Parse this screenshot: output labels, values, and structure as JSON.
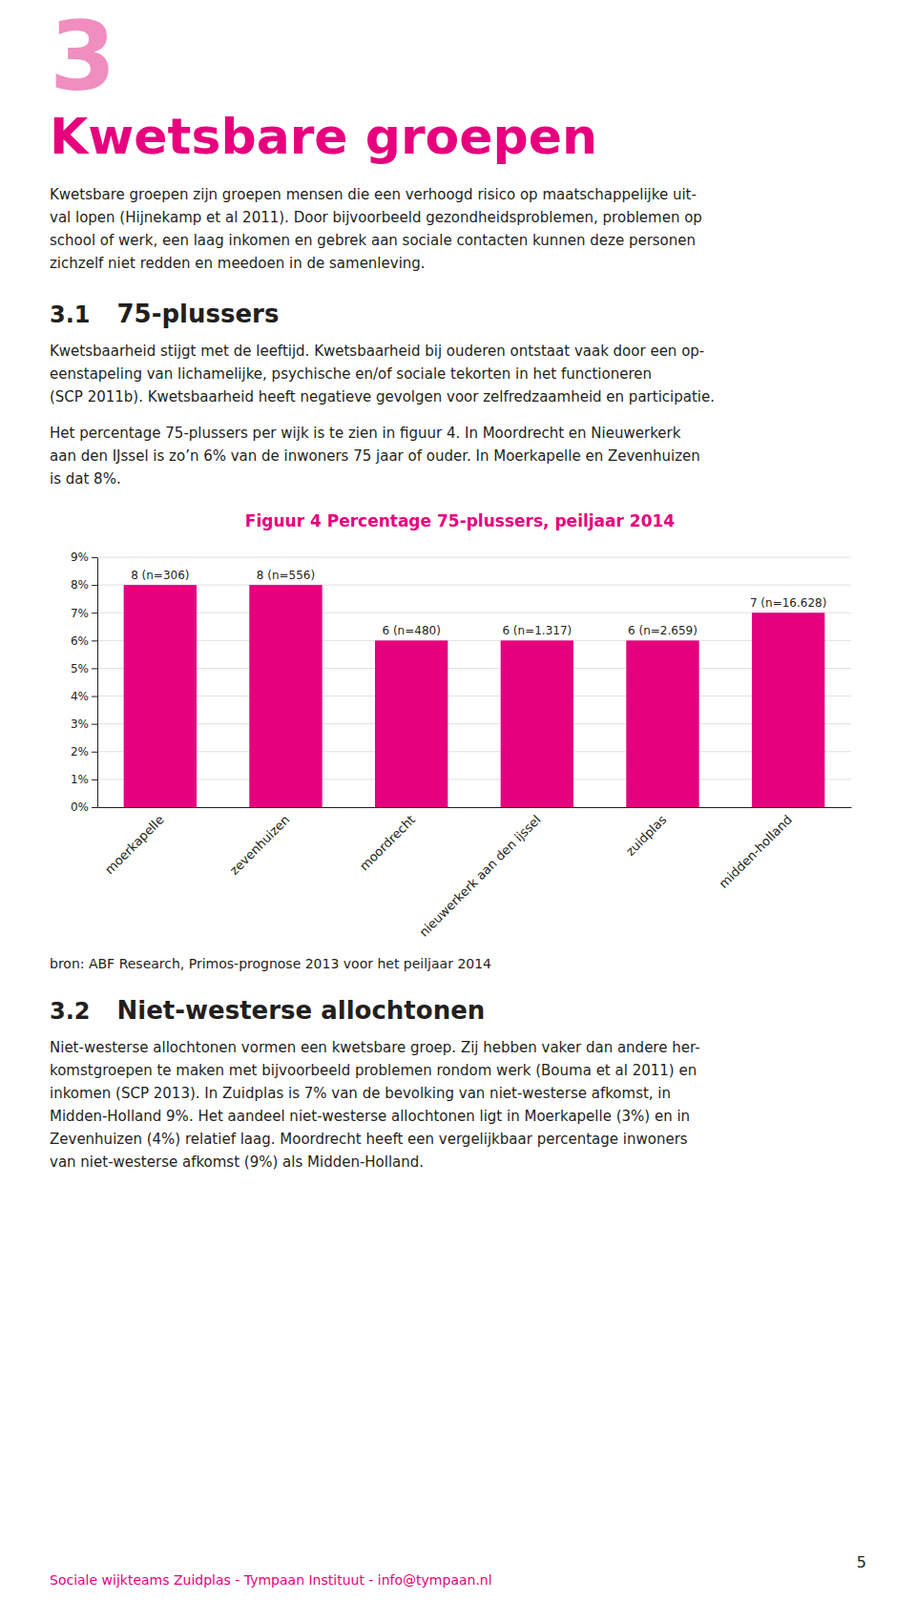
{
  "page_title_number": "3",
  "page_title": "Kwetsbare groepen",
  "intro_text": "Kwetsbare groepen zijn groepen mensen die een verhoogd risico op maatschappelijke uit-\nval lopen (Hijnekamp et al 2011). Door bijvoorbeeld gezondheidsproblemen, problemen op\nschool of werk, een laag inkomen en gebrek aan sociale contacten kunnen deze personen\nzichzelf niet redden en meedoen in de samenleving.",
  "section_31_num": "3.1",
  "section_31_label": "75-plussers",
  "section_31_para1": "Kwetsbaarheid stijgt met de leeftijd. Kwetsbaarheid bij ouderen ontstaat vaak door een op-\neenstapeling van lichamelijke, psychische en/of sociale tekorten in het functioneren\n(SCP 2011b). Kwetsbaarheid heeft negatieve gevolgen voor zelfredzaamheid en participatie.",
  "section_31_para2": "Het percentage 75-plussers per wijk is te zien in figuur 4. In Moordrecht en Nieuwerkerk\naan den IJssel is zo’n 6% van de inwoners 75 jaar of ouder. In Moerkapelle en Zevenhuizen\nis dat 8%.",
  "chart_data": {
    "type": "bar",
    "title": "Figuur 4    Percentage 75-plussers, peiljaar 2014",
    "categories": [
      "moerkapelle",
      "zevenhuizen",
      "moordrecht",
      "nieuwerkerk aan den ijssel",
      "zuidplas",
      "midden-holland"
    ],
    "values": [
      8,
      8,
      6,
      6,
      6,
      7
    ],
    "value_labels": [
      "8 (n=306)",
      "8 (n=556)",
      "6 (n=480)",
      "6 (n=1.317)",
      "6 (n=2.659)",
      "7 (n=16.628)"
    ],
    "data_labels": true,
    "color": "#E6007E",
    "ylim": [
      0,
      9
    ],
    "yticks": [
      {
        "value": 0,
        "label": "0%"
      },
      {
        "value": 1,
        "label": "1%"
      },
      {
        "value": 2,
        "label": "2%"
      },
      {
        "value": 3,
        "label": "3%"
      },
      {
        "value": 4,
        "label": "4%"
      },
      {
        "value": 5,
        "label": "5%"
      },
      {
        "value": 6,
        "label": "6%"
      },
      {
        "value": 7,
        "label": "7%"
      },
      {
        "value": 8,
        "label": "8%"
      },
      {
        "value": 9,
        "label": "9%"
      }
    ],
    "grid": true
  },
  "source_text": "bron: ABF Research, Primos-prognose 2013 voor het peiljaar 2014",
  "section_32_num": "3.2",
  "section_32_label": "Niet-westerse allochtonen",
  "section_32_para": "Niet-westerse allochtonen vormen een kwetsbare groep. Zij hebben vaker dan andere her-\nkomstgroepen te maken met bijvoorbeeld problemen rondom werk (Bouma et al 2011) en\ninkomen (SCP 2013). In Zuidplas is 7% van de bevolking van niet-westerse afkomst, in\nMidden-Holland 9%. Het aandeel niet-westerse allochtonen ligt in Moerkapelle (3%) en in\nZevenhuizen (4%) relatief laag. Moordrecht heeft een vergelijkbaar percentage inwoners\nvan niet-westerse afkomst (9%) als Midden-Holland.",
  "footer_text": "Sociale wijkteams Zuidplas - Tympaan Instituut - info@tympaan.nl",
  "page_number": "5"
}
